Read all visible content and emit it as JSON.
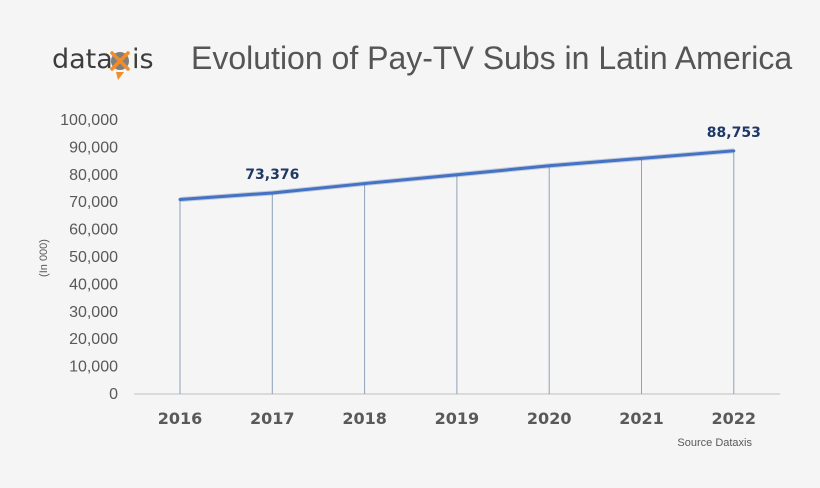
{
  "header": {
    "logo_text_left": "data",
    "logo_text_right": "is",
    "logo_mark_letter": "x",
    "title": "Evolution of Pay-TV Subs in Latin America"
  },
  "source_note": "Source Dataxis",
  "colors": {
    "line": "#4472c4",
    "drop_line": "#8ea2b8",
    "axis": "#bfbfbf",
    "data_label": "#1f3864",
    "logo_accent": "#f28c28"
  },
  "chart_data": {
    "type": "line",
    "title": "Evolution of Pay-TV Subs in Latin America",
    "xlabel": "",
    "ylabel": "(In 000)",
    "categories": [
      "2016",
      "2017",
      "2018",
      "2019",
      "2020",
      "2021",
      "2022"
    ],
    "series": [
      {
        "values": [
          71000,
          73376,
          76800,
          80000,
          83300,
          86000,
          88753
        ]
      }
    ],
    "data_labels": [
      {
        "index": 1,
        "text": "73,376"
      },
      {
        "index": 6,
        "text": "88,753"
      }
    ],
    "ylim": [
      0,
      100000
    ],
    "yticks": [
      0,
      10000,
      20000,
      30000,
      40000,
      50000,
      60000,
      70000,
      80000,
      90000,
      100000
    ],
    "ytick_labels": [
      "0",
      "10,000",
      "20,000",
      "30,000",
      "40,000",
      "50,000",
      "60,000",
      "70,000",
      "80,000",
      "90,000",
      "100,000"
    ],
    "drop_lines": true,
    "grid": false,
    "legend": "none"
  }
}
